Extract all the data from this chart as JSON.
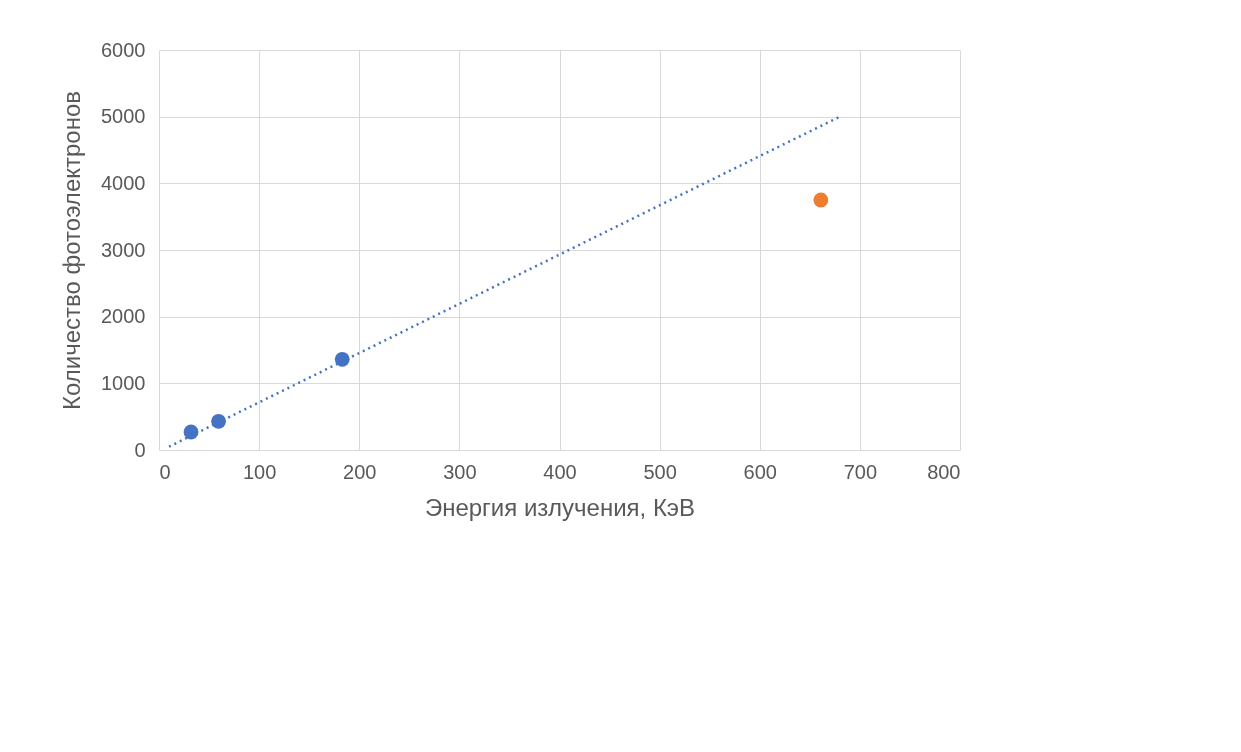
{
  "chart_data": {
    "type": "scatter",
    "xlabel": "Энергия излучения, КэВ",
    "ylabel": "Количество фотоэлектронов",
    "xlim": [
      0,
      800
    ],
    "ylim": [
      0,
      6000
    ],
    "xticks": [
      0,
      100,
      200,
      300,
      400,
      500,
      600,
      700,
      800
    ],
    "yticks": [
      0,
      1000,
      2000,
      3000,
      4000,
      5000,
      6000
    ],
    "grid": true,
    "marker": "circle",
    "series": [
      {
        "color": "#4472c4",
        "x": [
          32,
          59.5,
          183
        ],
        "values": [
          270,
          430,
          1360
        ]
      },
      {
        "color": "#ed7d31",
        "x": [
          661
        ],
        "values": [
          3750
        ]
      },
      {
        "type": "line",
        "color": "#4472c4",
        "line_style": "dotted",
        "marker": "none",
        "x": [
          10,
          680
        ],
        "values": [
          50,
          5000
        ]
      }
    ]
  }
}
